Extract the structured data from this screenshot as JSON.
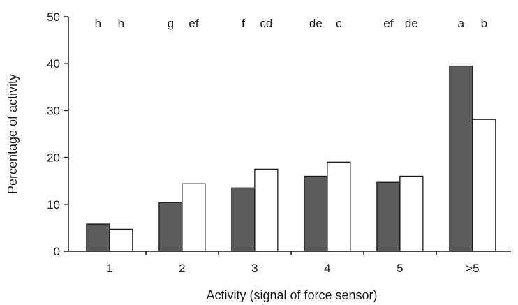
{
  "chart_data": {
    "type": "bar",
    "title": "",
    "xlabel": "Activity (signal of force sensor)",
    "ylabel": "Percentage of activity",
    "ylim": [
      0,
      50
    ],
    "yticks": [
      "0",
      "10",
      "20",
      "30",
      "40",
      "50"
    ],
    "grid": false,
    "categories": [
      "1",
      "2",
      "3",
      "4",
      "5",
      ">5"
    ],
    "series": [
      {
        "color": "#5a5a5a",
        "values": [
          5.8,
          10.4,
          13.5,
          16.0,
          14.7,
          39.5
        ]
      },
      {
        "color": "#ffffff",
        "values": [
          4.7,
          14.4,
          17.5,
          19.0,
          16.0,
          28.1
        ]
      }
    ],
    "significance_labels": [
      [
        "h",
        "h"
      ],
      [
        "g",
        "ef"
      ],
      [
        "f",
        "cd"
      ],
      [
        "de",
        "c"
      ],
      [
        "ef",
        "de"
      ],
      [
        "a",
        "b"
      ]
    ]
  }
}
